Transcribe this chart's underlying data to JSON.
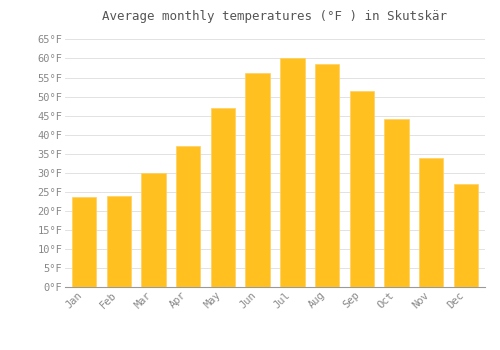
{
  "months": [
    "Jan",
    "Feb",
    "Mar",
    "Apr",
    "May",
    "Jun",
    "Jul",
    "Aug",
    "Sep",
    "Oct",
    "Nov",
    "Dec"
  ],
  "values": [
    23.5,
    23.8,
    29.8,
    37.0,
    47.0,
    56.2,
    60.1,
    58.5,
    51.5,
    44.0,
    34.0,
    27.0
  ],
  "bar_color": "#FFC020",
  "bar_edge_color": "#FFD060",
  "title": "Average monthly temperatures (°F ) in Skutskär",
  "title_fontsize": 9,
  "yticks": [
    0,
    5,
    10,
    15,
    20,
    25,
    30,
    35,
    40,
    45,
    50,
    55,
    60,
    65
  ],
  "ylim": [
    0,
    68
  ],
  "background_color": "#FFFFFF",
  "grid_color": "#DDDDDD",
  "tick_label_color": "#888888",
  "title_color": "#555555",
  "tick_fontsize": 7.5,
  "bar_width": 0.7
}
